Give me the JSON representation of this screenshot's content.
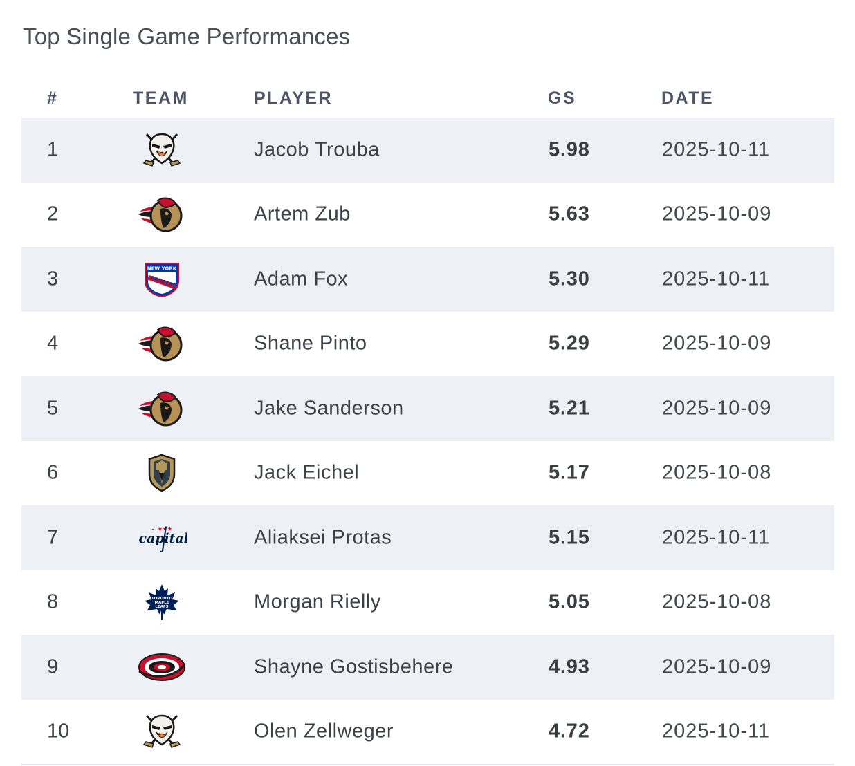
{
  "title": "Top Single Game Performances",
  "columns": {
    "rank": "#",
    "team": "TEAM",
    "player": "PLAYER",
    "gs": "GS",
    "date": "DATE"
  },
  "rows": [
    {
      "rank": "1",
      "team_icon": "ducks-logo-icon",
      "player": "Jacob Trouba",
      "gs": "5.98",
      "date": "2025-10-11"
    },
    {
      "rank": "2",
      "team_icon": "senators-logo-icon",
      "player": "Artem Zub",
      "gs": "5.63",
      "date": "2025-10-09"
    },
    {
      "rank": "3",
      "team_icon": "rangers-logo-icon",
      "player": "Adam Fox",
      "gs": "5.30",
      "date": "2025-10-11"
    },
    {
      "rank": "4",
      "team_icon": "senators-logo-icon",
      "player": "Shane Pinto",
      "gs": "5.29",
      "date": "2025-10-09"
    },
    {
      "rank": "5",
      "team_icon": "senators-logo-icon",
      "player": "Jake Sanderson",
      "gs": "5.21",
      "date": "2025-10-09"
    },
    {
      "rank": "6",
      "team_icon": "golden-knights-logo-icon",
      "player": "Jack Eichel",
      "gs": "5.17",
      "date": "2025-10-08"
    },
    {
      "rank": "7",
      "team_icon": "capitals-logo-icon",
      "player": "Aliaksei Protas",
      "gs": "5.15",
      "date": "2025-10-11"
    },
    {
      "rank": "8",
      "team_icon": "maple-leafs-logo-icon",
      "player": "Morgan Rielly",
      "gs": "5.05",
      "date": "2025-10-08"
    },
    {
      "rank": "9",
      "team_icon": "hurricanes-logo-icon",
      "player": "Shayne Gostisbehere",
      "gs": "4.93",
      "date": "2025-10-09"
    },
    {
      "rank": "10",
      "team_icon": "ducks-logo-icon",
      "player": "Olen Zellweger",
      "gs": "4.72",
      "date": "2025-10-11"
    }
  ]
}
